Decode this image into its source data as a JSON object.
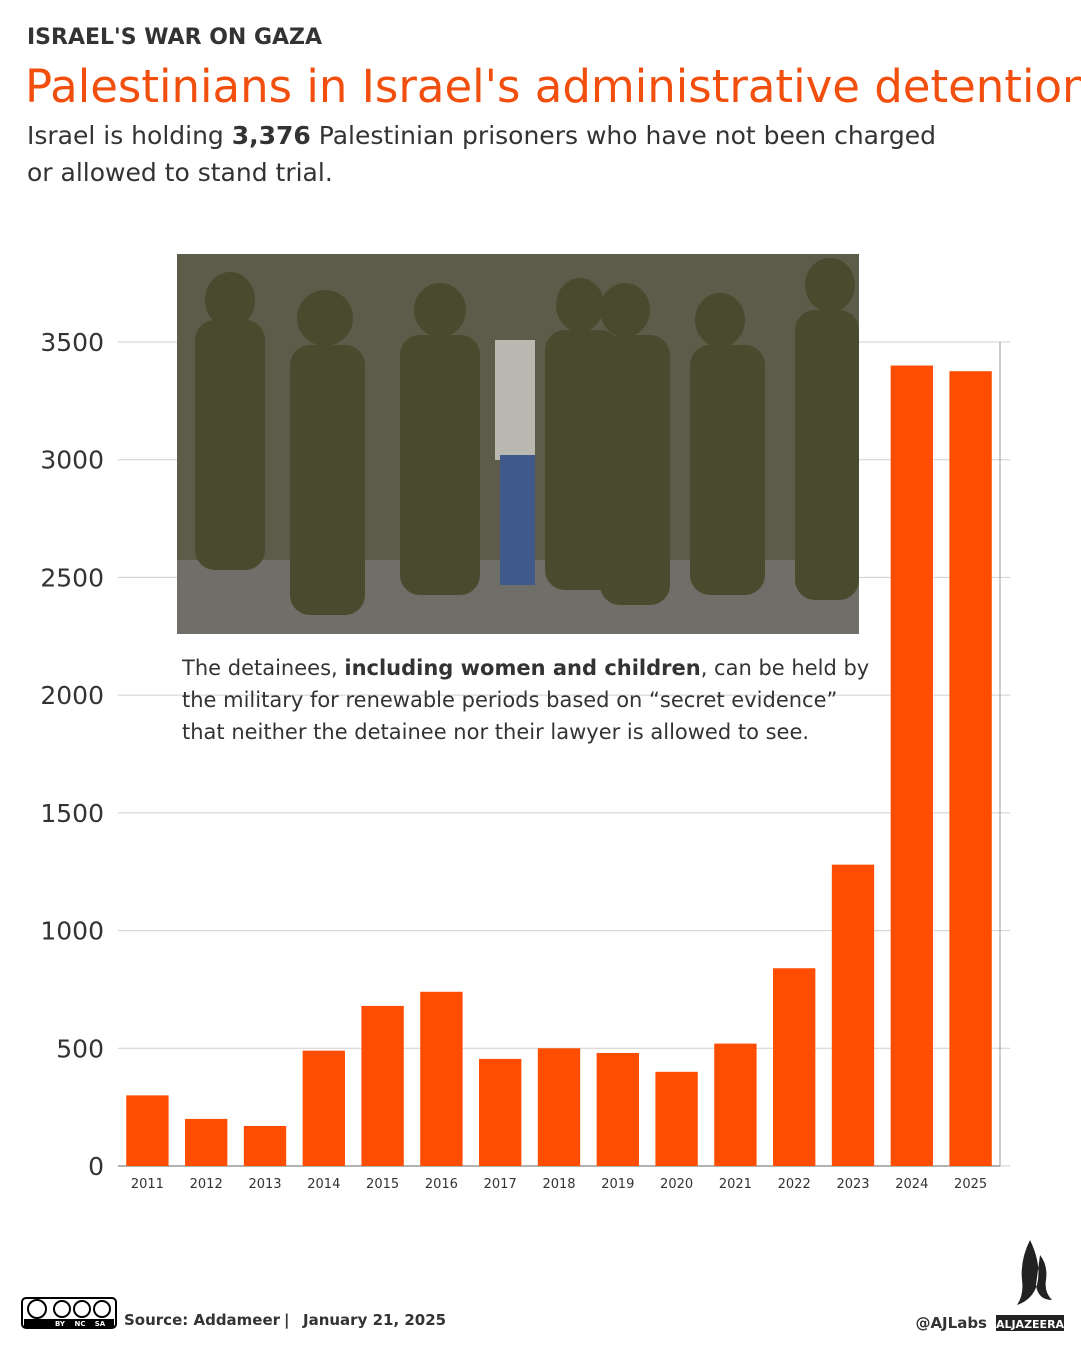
{
  "kicker": "ISRAEL'S WAR ON GAZA",
  "chart_data": {
    "type": "bar",
    "title": "Palestinians in Israel's administrative detention",
    "subtitle": {
      "before": "Israel is holding ",
      "bold": "3,376",
      "line1_after": " Palestinian prisoners who have not been charged",
      "line2": "or allowed to stand trial."
    },
    "annotation": {
      "line1_before": "The detainees, ",
      "line1_bold": "including women and children",
      "line1_after": ", can be held by",
      "line2": "the military for renewable periods based on “secret evidence”",
      "line3": "that neither the detainee nor their lawyer is allowed to see."
    },
    "categories": [
      "2011",
      "2012",
      "2013",
      "2014",
      "2015",
      "2016",
      "2017",
      "2018",
      "2019",
      "2020",
      "2021",
      "2022",
      "2023",
      "2024",
      "2025"
    ],
    "values": [
      300,
      200,
      170,
      490,
      680,
      740,
      455,
      500,
      480,
      400,
      520,
      840,
      1280,
      3400,
      3376
    ],
    "color": "#ff4d00",
    "ylim": [
      0,
      3500
    ],
    "yticks": [
      0,
      500,
      1000,
      1500,
      2000,
      2500,
      3000,
      3500
    ],
    "grid": true
  },
  "footer": {
    "license": [
      "BY",
      "NC",
      "SA"
    ],
    "source": "Source: Addameer",
    "separator": "|",
    "date": "January 21, 2025",
    "handle": "@AJLabs",
    "brand": "ALJAZEERA"
  }
}
